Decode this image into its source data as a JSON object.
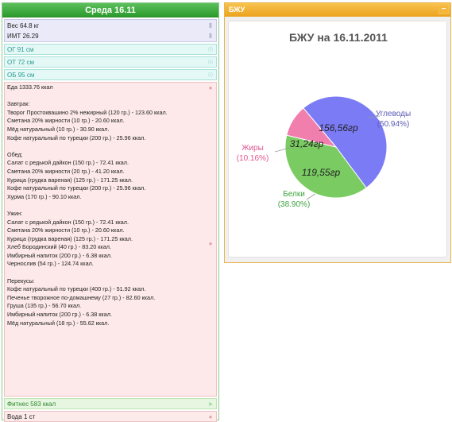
{
  "day": {
    "title": "Среда 16.11"
  },
  "weight": {
    "weight_label": "Вес 64.8 кг",
    "bmi_label": "ИМТ 26.29"
  },
  "measurements": [
    "ОГ 91 см",
    "ОТ 72 см",
    "ОБ 95 см"
  ],
  "food": {
    "total": "Еда 1333.76 ккал",
    "meals": [
      {
        "title": "Завтрак:",
        "items": [
          "Творог Простоквашино 2% нежирный (120 гр.) - 123.60 ккал.",
          "Сметана 20% жирности (10 гр.) - 20.60 ккал.",
          "Мёд натуральный (10 гр.) - 30.90 ккал.",
          "Кофе натуральный по турецки (200 гр.) - 25.96 ккал."
        ]
      },
      {
        "title": "Обед:",
        "items": [
          "Салат с редькой дайкон (150 гр.) - 72.41 ккал.",
          "Сметана 20% жирности (20 гр.) - 41.20 ккал.",
          "Курица (грудка вареная) (125 гр.) - 171.25 ккал.",
          "Кофе натуральный по турецки (200 гр.) - 25.96 ккал.",
          "Хурма (170 гр.) - 90.10 ккал."
        ]
      },
      {
        "title": "Ужин:",
        "items": [
          "Салат с редькой дайкон (150 гр.) - 72.41 ккал.",
          "Сметана 20% жирности (10 гр.) - 20.60 ккал.",
          "Курица (грудка вареная) (125 гр.) - 171.25 ккал.",
          "Хлеб Бородинский (40 гр.) - 83.20 ккал.",
          "Имбирный напиток (200 гр.) - 6.38 ккал.",
          "Чернослив (54 гр.) - 124.74 ккал."
        ]
      },
      {
        "title": "Перекусы:",
        "items": [
          "Кофе натуральный по турецки (400 гр.) - 51.92 ккал.",
          "Печенье творожное по-домашнему (27 гр.) - 82.60 ккал.",
          "Груша (135 гр.) - 56.70 ккал.",
          "Имбирный напиток (200 гр.) - 6.38 ккал.",
          "Мёд натуральный (18 гр.) - 55.62 ккал."
        ]
      }
    ]
  },
  "fitness": "Фитнес 583 ккал",
  "water": "Вода 1 ст",
  "panel": {
    "title": "БЖУ",
    "collapse_label": "−"
  },
  "icons": {
    "weight": "lock-icon",
    "measure": "eye-icon",
    "food": "apple-icon",
    "fitness": "running-shoe-icon",
    "water": "apple-icon",
    "collapse": "minus-icon"
  },
  "chart_data": {
    "type": "pie",
    "title": "БЖУ на 16.11.2011",
    "slices": [
      {
        "name": "Углеводы",
        "grams": 156.56,
        "value_label": "156,56гр",
        "percent": 50.94,
        "percent_label": "(50.94%)",
        "color": "#7b7bf5",
        "label_color": "#5a5ab4"
      },
      {
        "name": "Белки",
        "grams": 119.55,
        "value_label": "119,55гр",
        "percent": 38.9,
        "percent_label": "(38.90%)",
        "color": "#7acb62",
        "label_color": "#3fa43f"
      },
      {
        "name": "Жиры",
        "grams": 31.24,
        "value_label": "31,24гр",
        "percent": 10.16,
        "percent_label": "(10.16%)",
        "color": "#f17fae",
        "label_color": "#e0558f"
      }
    ]
  }
}
